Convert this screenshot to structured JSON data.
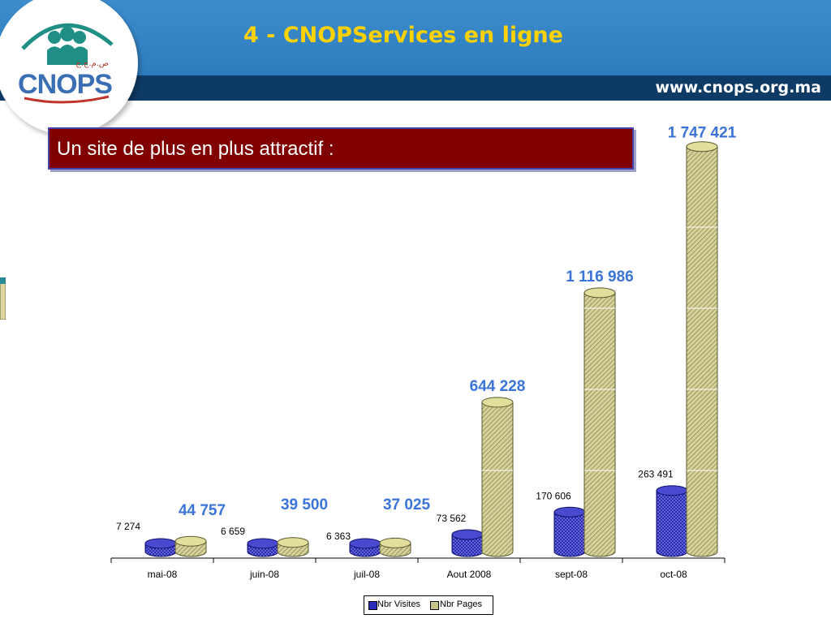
{
  "slide": {
    "title": "4 - CNOPServices en ligne",
    "url": "www.cnops.org.ma",
    "subtitle": "Un site de plus en plus attractif :"
  },
  "logo": {
    "text": "CNOPS",
    "arabic": "ص.م.ج.ج"
  },
  "colors": {
    "header": "#3c8ccc",
    "url_band": "#0e3a66",
    "title": "#ffd200",
    "subtitle_bg": "#800000",
    "visites": "#2a2ab8",
    "pages": "#c8c48a",
    "page_labels": "#3a74d8"
  },
  "chart_data": {
    "type": "bar",
    "categories": [
      "mai-08",
      "juin-08",
      "juil-08",
      "Aout 2008",
      "sept-08",
      "oct-08"
    ],
    "series": [
      {
        "name": "Nbr Visites",
        "values": [
          7274,
          6659,
          6363,
          73562,
          170606,
          263491
        ],
        "labels": [
          "7 274",
          "6 659",
          "6 363",
          "73 562",
          "170 606",
          "263 491"
        ]
      },
      {
        "name": "Nbr Pages",
        "values": [
          44757,
          39500,
          37025,
          644228,
          1116986,
          1747421
        ],
        "labels": [
          "44 757",
          "39 500",
          "37 025",
          "644 228",
          "1 116 986",
          "1 747 421"
        ]
      }
    ],
    "ylim": [
      0,
      1750000
    ],
    "grid": true,
    "style": "3d-cylinder",
    "legend": "bottom"
  }
}
